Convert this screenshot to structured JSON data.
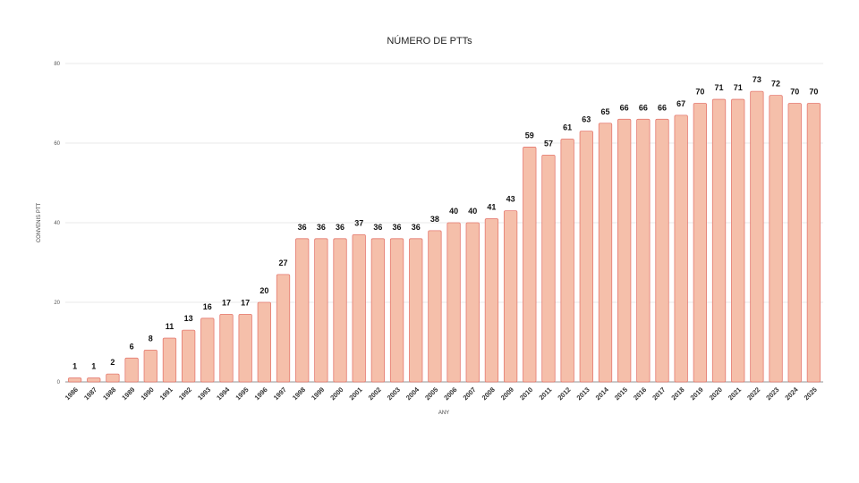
{
  "chart_data": {
    "type": "bar",
    "title": "NÚMERO DE PTTs",
    "xlabel": "ANY",
    "ylabel": "CONVENIS PTT",
    "ylim": [
      0,
      80
    ],
    "yticks": [
      0,
      20,
      40,
      60,
      80
    ],
    "grid": true,
    "categories": [
      "1986",
      "1987",
      "1988",
      "1989",
      "1990",
      "1991",
      "1992",
      "1993",
      "1994",
      "1995",
      "1996",
      "1997",
      "1998",
      "1999",
      "2000",
      "2001",
      "2002",
      "2003",
      "2004",
      "2005",
      "2006",
      "2007",
      "2008",
      "2009",
      "2010",
      "2011",
      "2012",
      "2013",
      "2014",
      "2015",
      "2016",
      "2017",
      "2018",
      "2019",
      "2020",
      "2021",
      "2022",
      "2023",
      "2024",
      "2025"
    ],
    "values": [
      1,
      1,
      2,
      6,
      8,
      11,
      13,
      16,
      17,
      17,
      20,
      27,
      36,
      36,
      36,
      37,
      36,
      36,
      36,
      38,
      40,
      40,
      41,
      43,
      59,
      57,
      61,
      63,
      65,
      66,
      66,
      66,
      67,
      70,
      71,
      71,
      73,
      72,
      70,
      70
    ],
    "colors": {
      "fill": "#f5bfaa",
      "stroke": "#e57a70",
      "grid": "#e3e3e3",
      "axis": "#aaaaaa"
    }
  }
}
